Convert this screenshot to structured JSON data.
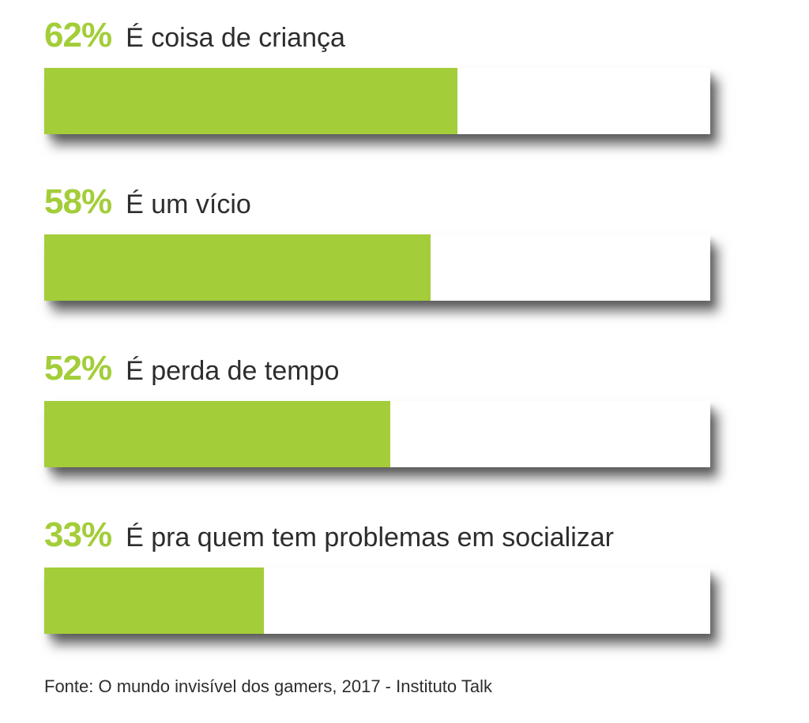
{
  "chart_data": {
    "type": "bar",
    "orientation": "horizontal",
    "unit": "%",
    "xlim": [
      0,
      100
    ],
    "categories": [
      "É coisa de criança",
      "É um vício",
      "É perda de tempo",
      "É pra quem tem problemas em socializar"
    ],
    "values": [
      62,
      58,
      52,
      33
    ],
    "value_labels": [
      "62%",
      "58%",
      "52%",
      "33%"
    ],
    "bar_color": "#a3cd39",
    "track_color": "#ffffff",
    "label_color": "#2d2d2d"
  },
  "source": "Fonte: O mundo invisível dos gamers, 2017 - Instituto Talk"
}
